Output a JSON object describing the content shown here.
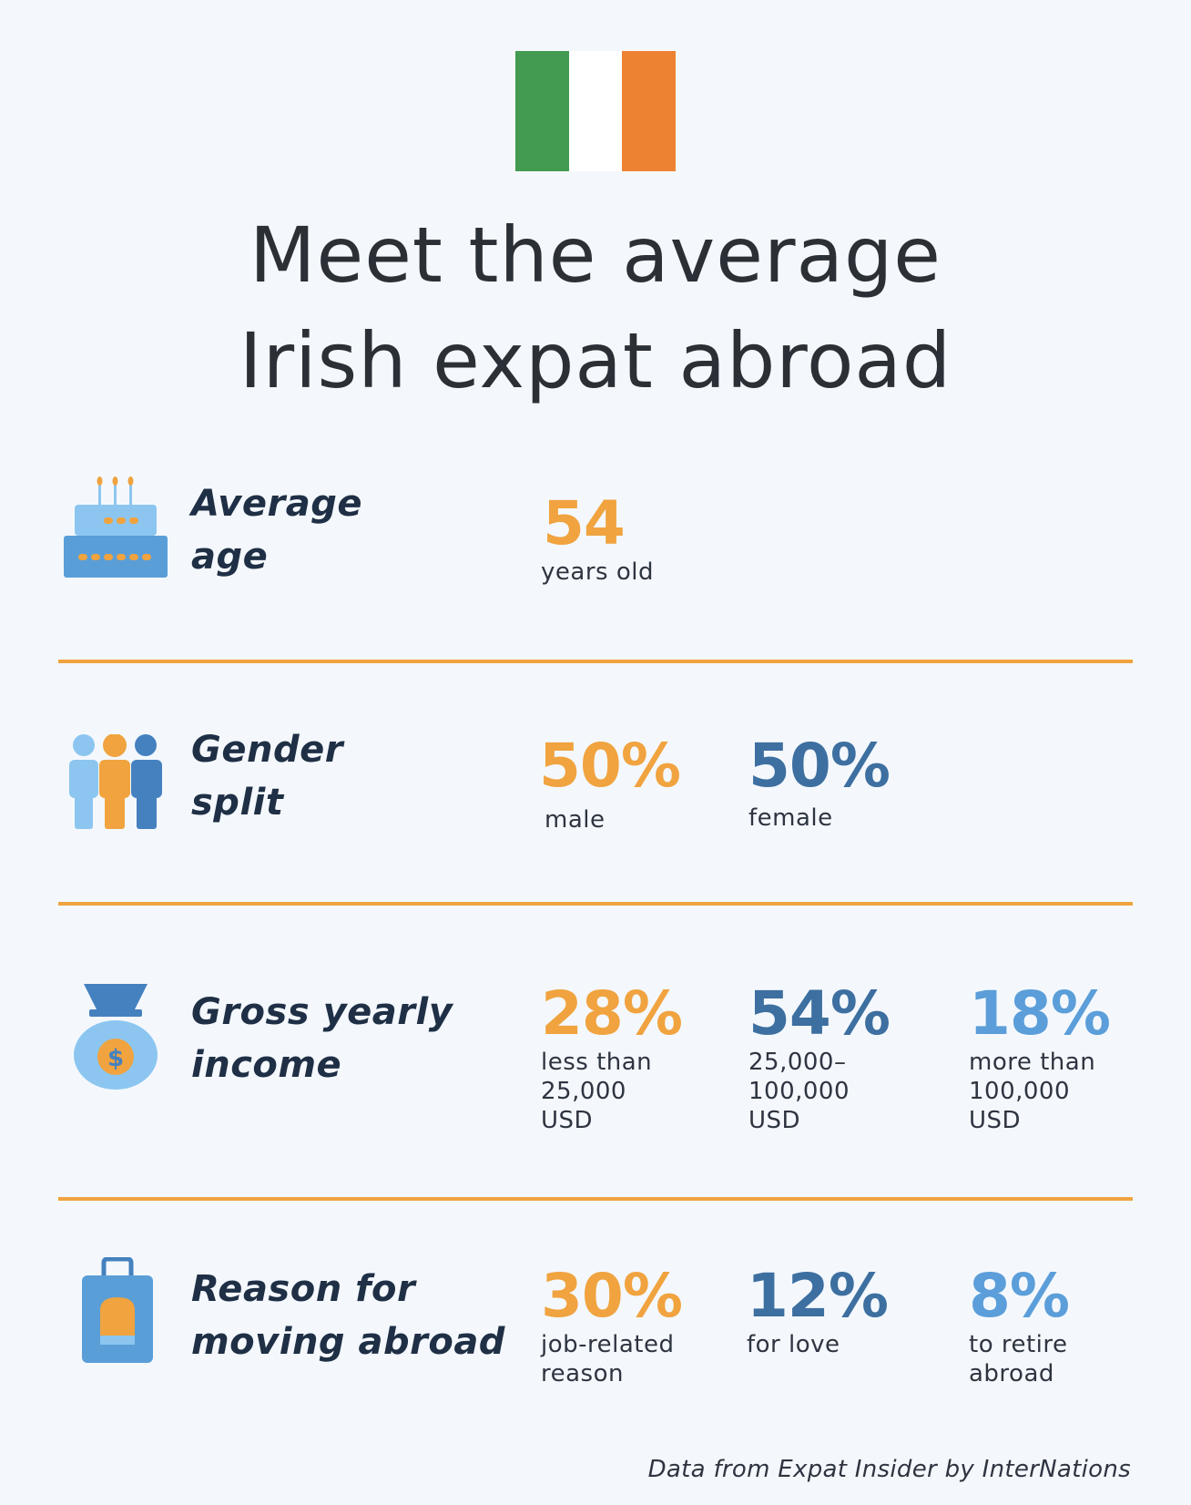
{
  "colors": {
    "flag_green": "#439a51",
    "flag_white": "#ffffff",
    "flag_orange": "#ee8233",
    "accent_orange": "#f0a33f",
    "accent_darkblue": "#3d6fa0",
    "accent_lightblue": "#5b9ed9",
    "divider": "#f0a33f",
    "icon_lightblue": "#8cc6f0",
    "icon_blue": "#5a9ed8",
    "icon_darkblue": "#4581bf"
  },
  "title": {
    "line1": "Meet the average",
    "line2": "Irish expat abroad"
  },
  "rows": [
    {
      "icon": "birthday-cake-icon",
      "label_line1": "Average",
      "label_line2": "age",
      "stats": [
        {
          "value": "54",
          "caption": "years old"
        }
      ]
    },
    {
      "icon": "people-group-icon",
      "label_line1": "Gender",
      "label_line2": "split",
      "stats": [
        {
          "value": "50%",
          "caption": "male"
        },
        {
          "value": "50%",
          "caption": "female"
        }
      ]
    },
    {
      "icon": "money-bag-icon",
      "label_line1": "Gross yearly",
      "label_line2": "income",
      "stats": [
        {
          "value": "28%",
          "caption": "less than\n25,000\nUSD"
        },
        {
          "value": "54%",
          "caption": "25,000–\n100,000\nUSD"
        },
        {
          "value": "18%",
          "caption": "more than\n100,000\nUSD"
        }
      ]
    },
    {
      "icon": "suitcase-icon",
      "label_line1": "Reason for",
      "label_line2": "moving abroad",
      "stats": [
        {
          "value": "30%",
          "caption": "job-related\nreason"
        },
        {
          "value": "12%",
          "caption": "for love"
        },
        {
          "value": "8%",
          "caption": "to retire\nabroad"
        }
      ]
    }
  ],
  "footer": "Data from Expat Insider by InterNations"
}
